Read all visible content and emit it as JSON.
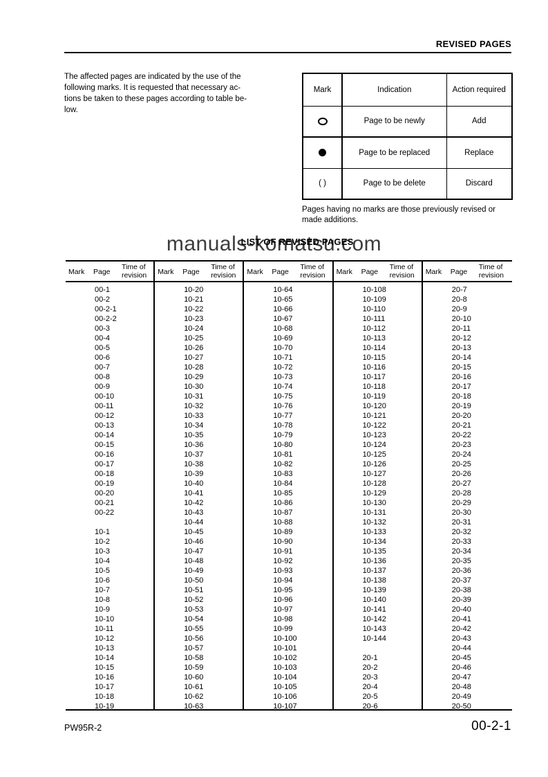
{
  "page": {
    "header_title": "REVISED PAGES",
    "footer_left": "PW95R-2",
    "footer_right": "00-2-1"
  },
  "intro": {
    "text": "The affected pages are indicated by the use of the\nfollowing marks. It is requested that necessary ac-\ntions be taken to these pages according to table be-\nlow."
  },
  "marks_table": {
    "headers": [
      "Mark",
      "Indication",
      "Action required"
    ],
    "rows": [
      {
        "mark_type": "circle-outline",
        "mark_text": "",
        "indication": "Page to be newly",
        "action": "Add"
      },
      {
        "mark_type": "circle-filled",
        "mark_text": "",
        "indication": "Page to be replaced",
        "action": "Replace"
      },
      {
        "mark_type": "text",
        "mark_text": "(  )",
        "indication": "Page to be delete",
        "action": "Discard"
      }
    ],
    "note": "Pages having no marks are those previously revised or\nmade additions."
  },
  "watermark": "manuals-komatsu.com",
  "list_table": {
    "title": "LIST OF REVISED PAGES",
    "column_headers": {
      "mark": "Mark",
      "page": "Page",
      "time": "Time of revision"
    },
    "groups": [
      {
        "pages": [
          "00-1",
          "00-2",
          "00-2-1",
          "00-2-2",
          "00-3",
          "00-4",
          "00-5",
          "00-6",
          "00-7",
          "00-8",
          "00-9",
          "00-10",
          "00-11",
          "00-12",
          "00-13",
          "00-14",
          "00-15",
          "00-16",
          "00-17",
          "00-18",
          "00-19",
          "00-20",
          "00-21",
          "00-22",
          "",
          "10-1",
          "10-2",
          "10-3",
          "10-4",
          "10-5",
          "10-6",
          "10-7",
          "10-8",
          "10-9",
          "10-10",
          "10-11",
          "10-12",
          "10-13",
          "10-14",
          "10-15",
          "10-16",
          "10-17",
          "10-18",
          "10-19"
        ]
      },
      {
        "pages": [
          "10-20",
          "10-21",
          "10-22",
          "10-23",
          "10-24",
          "10-25",
          "10-26",
          "10-27",
          "10-28",
          "10-29",
          "10-30",
          "10-31",
          "10-32",
          "10-33",
          "10-34",
          "10-35",
          "10-36",
          "10-37",
          "10-38",
          "10-39",
          "10-40",
          "10-41",
          "10-42",
          "10-43",
          "10-44",
          "10-45",
          "10-46",
          "10-47",
          "10-48",
          "10-49",
          "10-50",
          "10-51",
          "10-52",
          "10-53",
          "10-54",
          "10-55",
          "10-56",
          "10-57",
          "10-58",
          "10-59",
          "10-60",
          "10-61",
          "10-62",
          "10-63"
        ]
      },
      {
        "pages": [
          "10-64",
          "10-65",
          "10-66",
          "10-67",
          "10-68",
          "10-69",
          "10-70",
          "10-71",
          "10-72",
          "10-73",
          "10-74",
          "10-75",
          "10-76",
          "10-77",
          "10-78",
          "10-79",
          "10-80",
          "10-81",
          "10-82",
          "10-83",
          "10-84",
          "10-85",
          "10-86",
          "10-87",
          "10-88",
          "10-89",
          "10-90",
          "10-91",
          "10-92",
          "10-93",
          "10-94",
          "10-95",
          "10-96",
          "10-97",
          "10-98",
          "10-99",
          "10-100",
          "10-101",
          "10-102",
          "10-103",
          "10-104",
          "10-105",
          "10-106",
          "10-107"
        ]
      },
      {
        "pages": [
          "10-108",
          "10-109",
          "10-110",
          "10-111",
          "10-112",
          "10-113",
          "10-114",
          "10-115",
          "10-116",
          "10-117",
          "10-118",
          "10-119",
          "10-120",
          "10-121",
          "10-122",
          "10-123",
          "10-124",
          "10-125",
          "10-126",
          "10-127",
          "10-128",
          "10-129",
          "10-130",
          "10-131",
          "10-132",
          "10-133",
          "10-134",
          "10-135",
          "10-136",
          "10-137",
          "10-138",
          "10-139",
          "10-140",
          "10-141",
          "10-142",
          "10-143",
          "10-144",
          "",
          "20-1",
          "20-2",
          "20-3",
          "20-4",
          "20-5",
          "20-6"
        ]
      },
      {
        "pages": [
          "20-7",
          "20-8",
          "20-9",
          "20-10",
          "20-11",
          "20-12",
          "20-13",
          "20-14",
          "20-15",
          "20-16",
          "20-17",
          "20-18",
          "20-19",
          "20-20",
          "20-21",
          "20-22",
          "20-23",
          "20-24",
          "20-25",
          "20-26",
          "20-27",
          "20-28",
          "20-29",
          "20-30",
          "20-31",
          "20-32",
          "20-33",
          "20-34",
          "20-35",
          "20-36",
          "20-37",
          "20-38",
          "20-39",
          "20-40",
          "20-41",
          "20-42",
          "20-43",
          "20-44",
          "20-45",
          "20-46",
          "20-47",
          "20-48",
          "20-49",
          "20-50"
        ]
      }
    ]
  }
}
